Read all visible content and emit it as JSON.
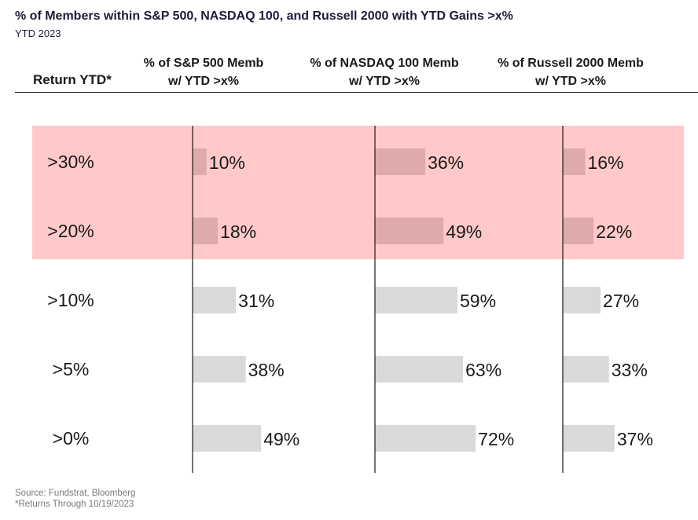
{
  "title": "% of Members within S&P 500, NASDAQ 100, and Russell 2000 with YTD Gains >x%",
  "subtitle": "YTD 2023",
  "header": {
    "row_label": "Return YTD*",
    "columns": [
      {
        "line1": "% of S&P 500 Memb",
        "line2": "w/ YTD >x%"
      },
      {
        "line1": "% of NASDAQ 100 Memb",
        "line2": "w/ YTD >x%"
      },
      {
        "line1": "% of Russell 2000 Memb",
        "line2": "w/ YTD >x%"
      }
    ]
  },
  "footer": {
    "source": "Source: Fundstrat, Bloomberg",
    "note": "*Returns Through 10/19/2023"
  },
  "colors": {
    "highlight": "#ffc9c9",
    "bar_highlighted": "#dfaaaa",
    "bar_default": "#d9d9d9",
    "axis": "#1a1a1a"
  },
  "chart_data": {
    "type": "bar",
    "categories": [
      ">30%",
      ">20%",
      ">10%",
      ">5%",
      ">0%"
    ],
    "highlighted_categories": [
      ">30%",
      ">20%"
    ],
    "series": [
      {
        "name": "% of S&P 500 Memb w/ YTD >x%",
        "values": [
          10,
          18,
          31,
          38,
          49
        ],
        "labels": [
          "10%",
          "18%",
          "31%",
          "38%",
          "49%"
        ]
      },
      {
        "name": "% of NASDAQ 100 Memb w/ YTD >x%",
        "values": [
          36,
          49,
          59,
          63,
          72
        ],
        "labels": [
          "36%",
          "49%",
          "59%",
          "63%",
          "72%"
        ]
      },
      {
        "name": "% of Russell 2000 Memb w/ YTD >x%",
        "values": [
          16,
          22,
          27,
          33,
          37
        ],
        "labels": [
          "16%",
          "22%",
          "27%",
          "33%",
          "37%"
        ]
      }
    ]
  }
}
